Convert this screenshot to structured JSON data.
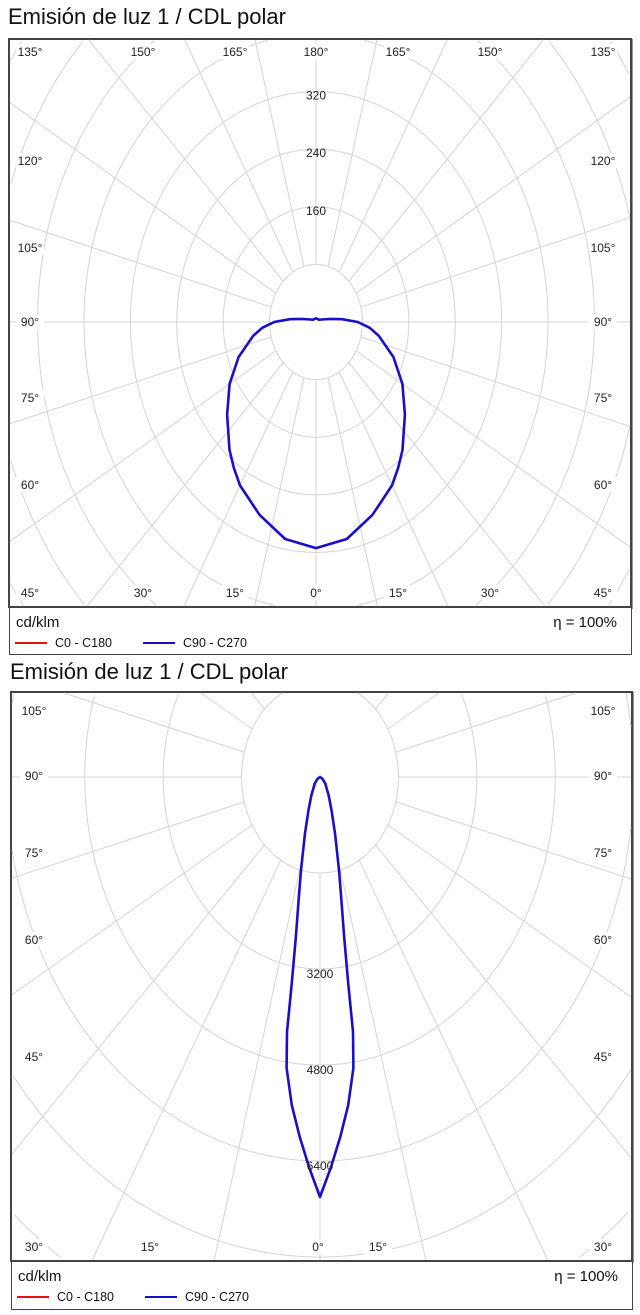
{
  "chart_data": [
    {
      "type": "polar",
      "title": "Emisión de luz 1 / CDL polar",
      "unit_label": "cd/klm",
      "efficiency_label": "η = 100%",
      "radial_rings": [
        80,
        160,
        240,
        320,
        400,
        480,
        560,
        640,
        720,
        800
      ],
      "radial_tick_labels": [
        "160",
        "240",
        "320"
      ],
      "angle_tick_labels": [
        "135°",
        "150°",
        "165°",
        "180°",
        "165°",
        "150°",
        "135°",
        "120°",
        "105°",
        "90°",
        "75°",
        "60°",
        "120°",
        "105°",
        "90°",
        "75°",
        "60°",
        "45°",
        "30°",
        "15°",
        "0°",
        "15°",
        "30°",
        "45°"
      ],
      "legend_position": "bottom-left",
      "grid": true,
      "series": [
        {
          "name": "C0 - C180",
          "color": "#e81010",
          "gamma": null,
          "values": null
        },
        {
          "name": "C90 - C270",
          "color": "#1a0fc8",
          "gamma": [
            0,
            10,
            20,
            30,
            35,
            40,
            50,
            60,
            70,
            80,
            85,
            90,
            95,
            100,
            110,
            120,
            150,
            180
          ],
          "values": [
            314,
            306,
            285,
            262,
            247,
            232,
            200,
            172,
            142,
            110,
            93,
            72,
            45,
            25,
            10,
            6,
            5,
            5
          ]
        }
      ]
    },
    {
      "type": "polar",
      "title": "Emisión de luz 1 / CDL polar",
      "unit_label": "cd/klm",
      "efficiency_label": "η = 100%",
      "radial_rings": [
        1600,
        3200,
        4800,
        6400,
        8000,
        9600,
        11200,
        12800,
        14400
      ],
      "radial_tick_labels": [
        "3200",
        "4800",
        "6400"
      ],
      "angle_tick_labels": [
        "105°",
        "90°",
        "75°",
        "60°",
        "45°",
        "105°",
        "90°",
        "75°",
        "60°",
        "45°",
        "30°",
        "15°",
        "0°",
        "15°",
        "30°"
      ],
      "legend_position": "bottom-left",
      "grid": true,
      "series": [
        {
          "name": "C0 - C180",
          "color": "#e81010",
          "gamma": null,
          "values": null
        },
        {
          "name": "C90 - C270",
          "color": "#1a0fc8",
          "gamma": [
            0,
            2,
            4,
            6,
            8,
            9,
            9.5,
            10.5,
            12,
            14,
            18,
            23,
            30,
            45,
            60,
            90
          ],
          "values": [
            7000,
            6500,
            6000,
            5500,
            4900,
            4300,
            3500,
            2700,
            2100,
            1600,
            1000,
            600,
            350,
            150,
            60,
            0
          ]
        }
      ]
    }
  ]
}
